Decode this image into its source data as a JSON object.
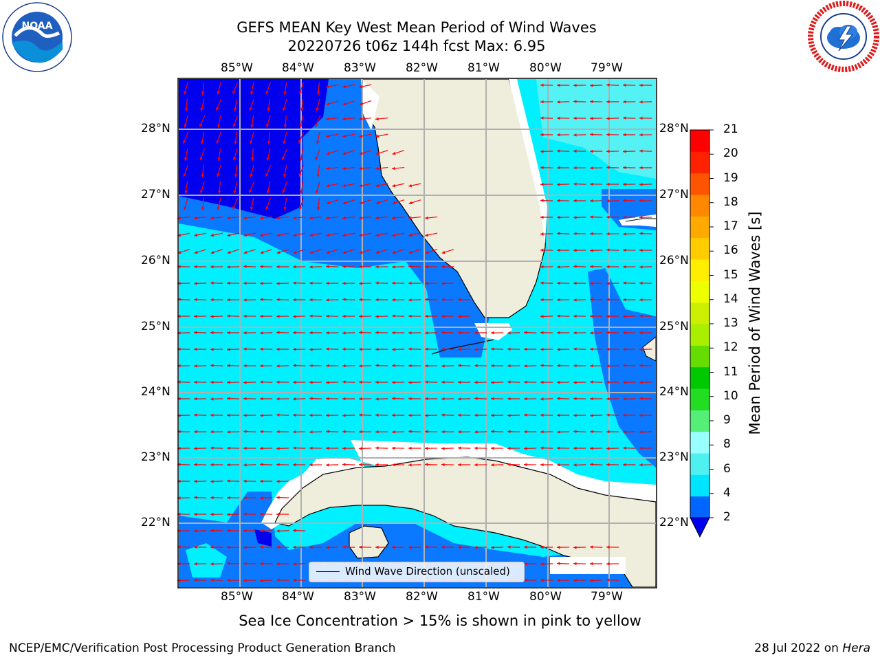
{
  "title": {
    "line1": "GEFS MEAN Key West Mean Period of Wind Waves",
    "line2": "20220726 t06z 144h fcst   Max: 6.95"
  },
  "logos": {
    "left": {
      "icon": "noaa-logo",
      "text": "NOAA",
      "ring_text": "NATIONAL OCEANIC AND ATMOSPHERIC ADMINISTRATION · U.S. DEPARTMENT OF COMMERCE"
    },
    "right": {
      "icon": "nws-logo",
      "ring_text": "NATIONAL WEATHER SERVICE"
    }
  },
  "map": {
    "lon_labels": [
      "85°W",
      "84°W",
      "83°W",
      "82°W",
      "81°W",
      "80°W",
      "79°W"
    ],
    "lat_labels": [
      "22°N",
      "23°N",
      "24°N",
      "25°N",
      "26°N",
      "27°N",
      "28°N"
    ],
    "legend": "Wind Wave Direction (unscaled)",
    "arrow_color": "#ff0000",
    "land_color": "#efeddc",
    "grid_color": "#b0b0b0"
  },
  "colorbar": {
    "label": "Mean Period of Wind Waves [s]",
    "ticks": [
      "2",
      "4",
      "6",
      "8",
      "9",
      "10",
      "11",
      "12",
      "13",
      "14",
      "15",
      "16",
      "17",
      "18",
      "19",
      "20",
      "21"
    ],
    "colors": [
      "#0066ff",
      "#00e5ff",
      "#4ef0f0",
      "#99ffff",
      "#55ee77",
      "#22dd22",
      "#00c800",
      "#66dd00",
      "#aaee00",
      "#ccee00",
      "#eeff00",
      "#ffee00",
      "#ffcc00",
      "#ffaa00",
      "#ff8800",
      "#ff5500",
      "#ff2200",
      "#ff0000"
    ],
    "under_color": "#0000ee"
  },
  "note": "Sea Ice Concentration > 15% is shown in pink to yellow",
  "footer": {
    "left": "NCEP/EMC/Verification Post Processing Product Generation Branch",
    "date": "28 Jul 2022 on ",
    "machine": "Hera"
  },
  "chart_data": {
    "type": "heatmap",
    "title": "GEFS MEAN Key West Mean Period of Wind Waves",
    "subtitle": "20220726 t06z 144h fcst   Max: 6.95",
    "variable": "Mean Period of Wind Waves [s]",
    "max_value": 6.95,
    "lon_range": [
      -86.0,
      -78.3
    ],
    "lat_range": [
      21.0,
      28.75
    ],
    "levels": [
      2,
      4,
      6,
      8,
      9,
      10,
      11,
      12,
      13,
      14,
      15,
      16,
      17,
      18,
      19,
      20,
      21
    ],
    "regions": [
      {
        "area": "NE Gulf of Mexico (north of ~26.7N, west of ~84W)",
        "range_s": "< 2"
      },
      {
        "area": "Eastern Gulf near Florida west coast",
        "range_s": "2-4"
      },
      {
        "area": "Central/southern Gulf, Florida Straits",
        "range_s": "4-6"
      },
      {
        "area": "Atlantic east of Florida",
        "range_s": "4-6"
      },
      {
        "area": "Gulf Stream / Bahamas edge",
        "range_s": "2-4"
      }
    ],
    "prevailing_wave_direction": "east to west (arrows point westward)"
  }
}
